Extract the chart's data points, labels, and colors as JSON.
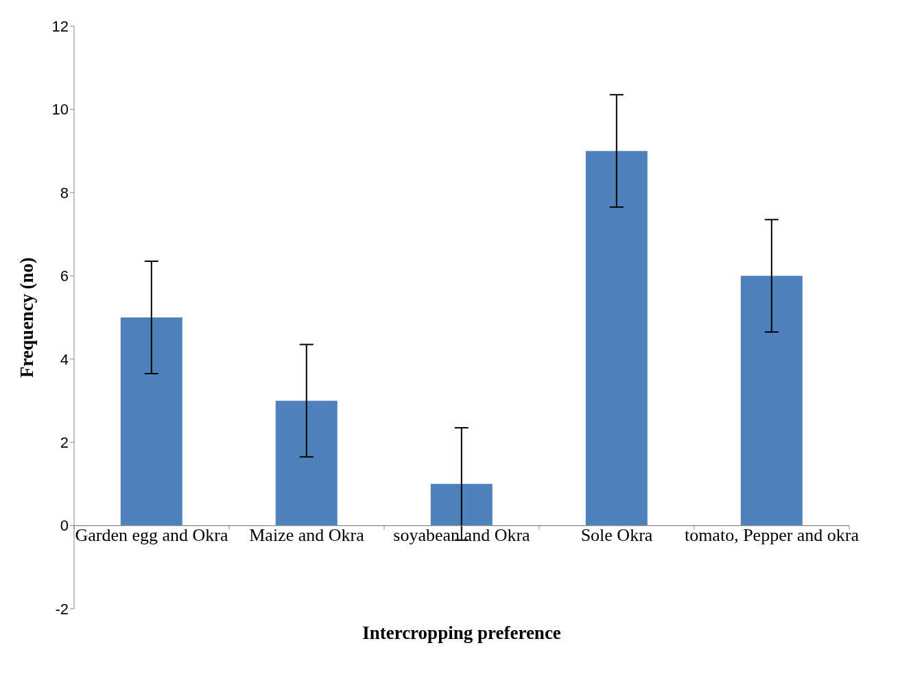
{
  "chart_data": {
    "type": "bar",
    "xlabel": "Intercropping preference",
    "ylabel": "Frequency (no)",
    "categories": [
      "Garden egg and Okra",
      "Maize and Okra",
      "soyabean and Okra",
      "Sole Okra",
      "tomato, Pepper and okra"
    ],
    "values": [
      5,
      3,
      1,
      9,
      6
    ],
    "errors": [
      1.35,
      1.35,
      1.35,
      1.35,
      1.35
    ],
    "color": "#4f81bd",
    "ylim": [
      -2,
      12
    ],
    "yticks": [
      -2,
      0,
      2,
      4,
      6,
      8,
      10,
      12
    ]
  }
}
